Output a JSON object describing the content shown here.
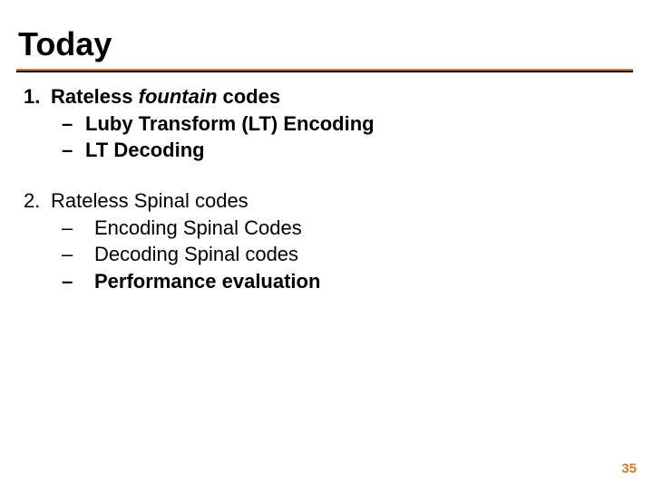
{
  "title": "Today",
  "accent_color": "#d9782d",
  "text_color": "#000000",
  "background_color": "#ffffff",
  "font_family": "Arial",
  "title_fontsize": 36,
  "body_fontsize": 22,
  "page_number": "35",
  "items": {
    "i1": {
      "num": "1.",
      "prefix": "Rateless ",
      "em": "fountain",
      "suffix": " codes",
      "sub1": "Luby Transform (LT) Encoding",
      "sub2": "LT  Decoding"
    },
    "i2": {
      "num": "2.",
      "label": "Rateless Spinal  codes",
      "sub1": "Encoding Spinal Codes",
      "sub2": "Decoding Spinal codes",
      "sub3": "Performance evaluation"
    }
  },
  "dash": "–"
}
